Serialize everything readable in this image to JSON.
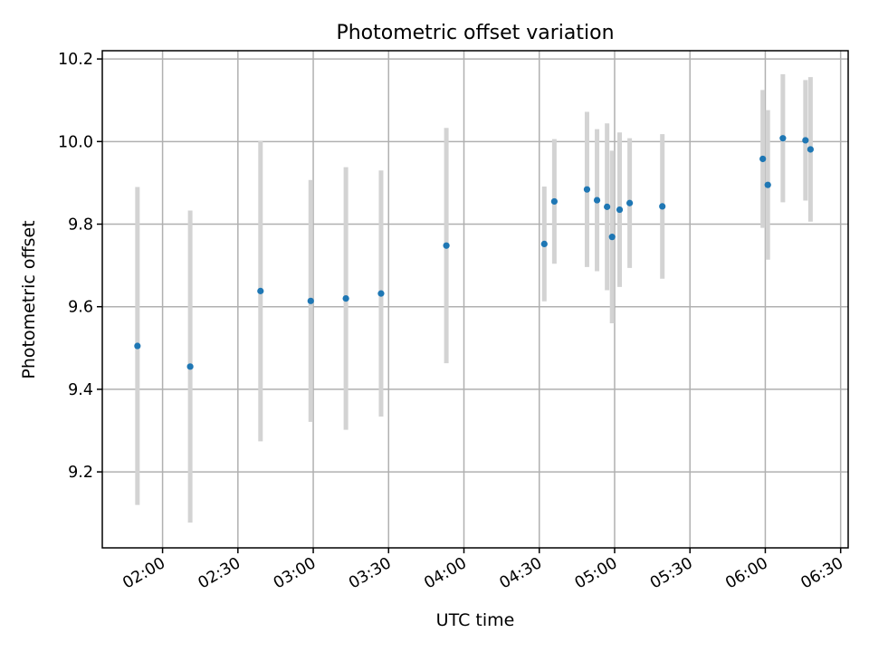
{
  "chart_data": {
    "type": "scatter",
    "title": "Photometric offset variation",
    "xlabel": "UTC time",
    "ylabel": "Photometric offset",
    "xlim": [
      "01:36",
      "06:33"
    ],
    "ylim": [
      9.016,
      10.22
    ],
    "grid": true,
    "xticks": [
      "02:00",
      "02:30",
      "03:00",
      "03:30",
      "04:00",
      "04:30",
      "05:00",
      "05:30",
      "06:00",
      "06:30"
    ],
    "yticks": [
      "9.2",
      "9.4",
      "9.6",
      "9.8",
      "10.0",
      "10.2"
    ],
    "points": [
      {
        "x": "01:50",
        "y": 9.505,
        "err": 0.385
      },
      {
        "x": "02:11",
        "y": 9.455,
        "err": 0.378
      },
      {
        "x": "02:39",
        "y": 9.638,
        "err": 0.364
      },
      {
        "x": "02:59",
        "y": 9.614,
        "err": 0.293
      },
      {
        "x": "03:13",
        "y": 9.62,
        "err": 0.318
      },
      {
        "x": "03:27",
        "y": 9.632,
        "err": 0.298
      },
      {
        "x": "03:53",
        "y": 9.748,
        "err": 0.285
      },
      {
        "x": "04:32",
        "y": 9.752,
        "err": 0.139
      },
      {
        "x": "04:36",
        "y": 9.855,
        "err": 0.151
      },
      {
        "x": "04:49",
        "y": 9.884,
        "err": 0.188
      },
      {
        "x": "04:53",
        "y": 9.858,
        "err": 0.172
      },
      {
        "x": "04:57",
        "y": 9.842,
        "err": 0.202
      },
      {
        "x": "04:59",
        "y": 9.769,
        "err": 0.209
      },
      {
        "x": "05:02",
        "y": 9.835,
        "err": 0.187
      },
      {
        "x": "05:06",
        "y": 9.851,
        "err": 0.157
      },
      {
        "x": "05:19",
        "y": 9.843,
        "err": 0.175
      },
      {
        "x": "05:59",
        "y": 9.958,
        "err": 0.167
      },
      {
        "x": "06:01",
        "y": 9.895,
        "err": 0.181
      },
      {
        "x": "06:07",
        "y": 10.008,
        "err": 0.155
      },
      {
        "x": "06:16",
        "y": 10.003,
        "err": 0.146
      },
      {
        "x": "06:18",
        "y": 9.981,
        "err": 0.175
      }
    ]
  }
}
